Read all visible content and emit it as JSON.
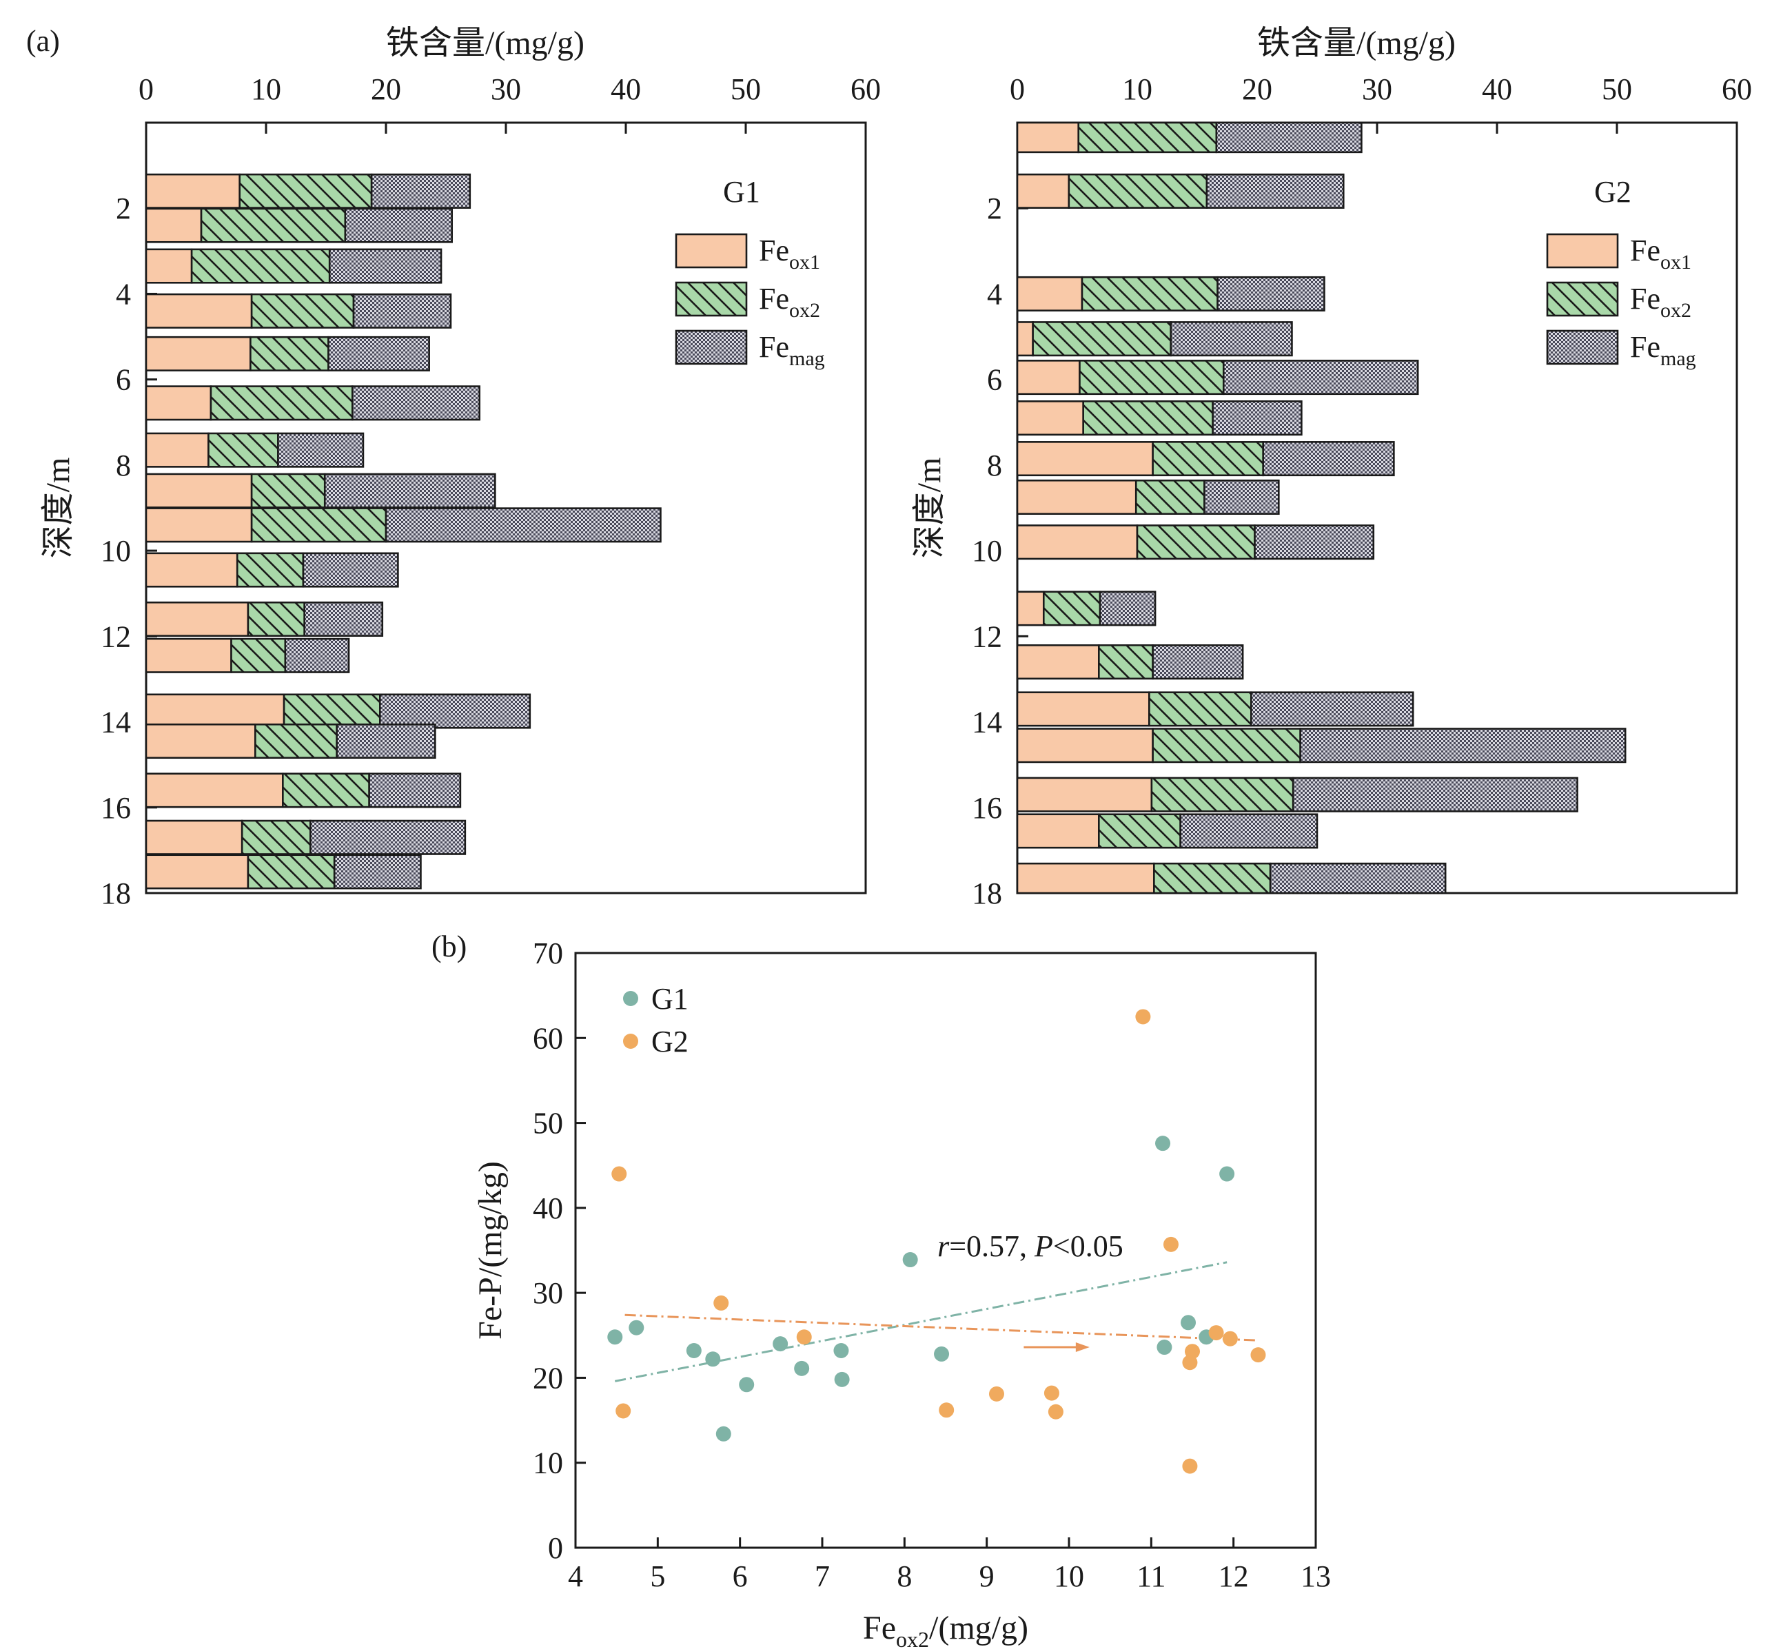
{
  "figure": {
    "panel_a_label": "(a)",
    "panel_b_label": "(b)"
  },
  "colors": {
    "feox1": "#f9c9a8",
    "feox2": "#a9d8a9",
    "femag": "#b4b4c4",
    "g1_point": "#7fb3a6",
    "g2_point": "#f0aa5e",
    "g1_line": "#7fb3a6",
    "g2_line": "#e8955a",
    "arrow": "#e8955a"
  },
  "chart_data": [
    {
      "type": "bar",
      "orientation": "horizontal",
      "stacked": true,
      "panel": "(a)",
      "title": "G1",
      "xlabel": "铁含量/(mg/g)",
      "ylabel": "深度/m",
      "xlim": [
        0,
        60
      ],
      "ylim": [
        18,
        0
      ],
      "xticks": [
        "0",
        "10",
        "20",
        "30",
        "40",
        "50",
        "60"
      ],
      "yticks": [
        "2",
        "4",
        "6",
        "8",
        "10",
        "12",
        "14",
        "16",
        "18"
      ],
      "bar_depth_span": 0.78,
      "legend": [
        "Fe_ox1",
        "Fe_ox2",
        "Fe_mag"
      ],
      "legend_position": "top-right",
      "depths": [
        1.6,
        2.4,
        3.35,
        4.4,
        5.4,
        6.55,
        7.65,
        8.6,
        9.4,
        10.45,
        11.6,
        12.45,
        13.75,
        14.45,
        15.6,
        16.7,
        17.5
      ],
      "series": [
        {
          "name": "Fe_ox1",
          "values": [
            7.8,
            4.6,
            3.8,
            8.8,
            8.7,
            5.4,
            5.2,
            8.8,
            8.8,
            7.6,
            8.5,
            7.1,
            11.5,
            9.1,
            11.4,
            8.0,
            8.5
          ]
        },
        {
          "name": "Fe_ox2",
          "values": [
            11.0,
            12.0,
            11.5,
            8.5,
            6.5,
            11.8,
            5.8,
            6.1,
            11.2,
            5.5,
            4.7,
            4.5,
            8.0,
            6.8,
            7.2,
            5.7,
            7.2
          ]
        },
        {
          "name": "Fe_mag",
          "values": [
            8.2,
            8.9,
            9.3,
            8.1,
            8.4,
            10.6,
            7.1,
            14.2,
            22.9,
            7.9,
            6.5,
            5.3,
            12.5,
            8.2,
            7.6,
            12.9,
            7.2
          ]
        }
      ]
    },
    {
      "type": "bar",
      "orientation": "horizontal",
      "stacked": true,
      "panel": "(a)",
      "title": "G2",
      "xlabel": "铁含量/(mg/g)",
      "ylabel": "深度/m",
      "xlim": [
        0,
        60
      ],
      "ylim": [
        18,
        0
      ],
      "xticks": [
        "0",
        "10",
        "20",
        "30",
        "40",
        "50",
        "60"
      ],
      "yticks": [
        "2",
        "4",
        "6",
        "8",
        "10",
        "12",
        "14",
        "16",
        "18"
      ],
      "bar_depth_span": 0.78,
      "legend": [
        "Fe_ox1",
        "Fe_ox2",
        "Fe_mag"
      ],
      "legend_position": "top-right",
      "depths": [
        0.3,
        1.6,
        4.0,
        5.05,
        5.95,
        6.9,
        7.85,
        8.75,
        9.8,
        11.35,
        12.6,
        13.7,
        14.55,
        15.7,
        16.55,
        17.7
      ],
      "series": [
        {
          "name": "Fe_ox1",
          "values": [
            5.1,
            4.3,
            5.4,
            1.3,
            5.2,
            5.5,
            11.3,
            9.9,
            10.0,
            2.2,
            6.8,
            11.0,
            11.3,
            11.2,
            6.8,
            11.4
          ]
        },
        {
          "name": "Fe_ox2",
          "values": [
            11.5,
            11.5,
            11.3,
            11.5,
            12.0,
            10.8,
            9.2,
            5.7,
            9.8,
            4.7,
            4.5,
            8.5,
            12.3,
            11.8,
            6.8,
            9.7
          ]
        },
        {
          "name": "Fe_mag",
          "values": [
            12.1,
            11.4,
            8.9,
            10.1,
            16.2,
            7.4,
            10.9,
            6.2,
            9.9,
            4.6,
            7.5,
            13.5,
            27.1,
            23.7,
            11.4,
            14.6
          ]
        }
      ]
    },
    {
      "type": "scatter",
      "panel": "(b)",
      "title": "",
      "xlabel": "Fe_ox2/(mg/g)",
      "ylabel": "Fe-P/(mg/kg)",
      "xlim": [
        4,
        13
      ],
      "ylim": [
        0,
        70
      ],
      "xticks": [
        "4",
        "5",
        "6",
        "7",
        "8",
        "9",
        "10",
        "11",
        "12",
        "13"
      ],
      "yticks": [
        "0",
        "10",
        "20",
        "30",
        "40",
        "50",
        "60",
        "70"
      ],
      "legend_position": "top-left",
      "annotation": {
        "r_symbol": "r",
        "r_text": "=0.57, ",
        "p_symbol": "P",
        "p_text": "<0.05"
      },
      "series": [
        {
          "name": "G1",
          "points": [
            [
              4.48,
              24.8
            ],
            [
              4.74,
              25.9
            ],
            [
              5.44,
              23.2
            ],
            [
              5.67,
              22.2
            ],
            [
              5.8,
              13.4
            ],
            [
              6.08,
              19.2
            ],
            [
              6.49,
              24.0
            ],
            [
              6.75,
              21.1
            ],
            [
              7.23,
              23.2
            ],
            [
              7.24,
              19.8
            ],
            [
              8.07,
              33.9
            ],
            [
              8.45,
              22.8
            ],
            [
              11.14,
              47.6
            ],
            [
              11.16,
              23.6
            ],
            [
              11.45,
              26.5
            ],
            [
              11.67,
              24.8
            ],
            [
              11.92,
              44.0
            ]
          ],
          "trend": {
            "x": [
              4.48,
              11.92
            ],
            "y": [
              19.6,
              33.6
            ]
          }
        },
        {
          "name": "G2",
          "points": [
            [
              4.53,
              44.0
            ],
            [
              4.58,
              16.1
            ],
            [
              5.77,
              28.8
            ],
            [
              6.78,
              24.8
            ],
            [
              8.51,
              16.2
            ],
            [
              9.12,
              18.1
            ],
            [
              9.79,
              18.2
            ],
            [
              9.84,
              16.0
            ],
            [
              10.9,
              62.5
            ],
            [
              11.24,
              35.7
            ],
            [
              11.47,
              9.6
            ],
            [
              11.47,
              21.8
            ],
            [
              11.5,
              23.1
            ],
            [
              11.79,
              25.3
            ],
            [
              11.96,
              24.6
            ],
            [
              12.3,
              22.7
            ]
          ],
          "trend": {
            "x": [
              4.6,
              12.3
            ],
            "y": [
              27.4,
              24.4
            ]
          }
        }
      ]
    }
  ]
}
